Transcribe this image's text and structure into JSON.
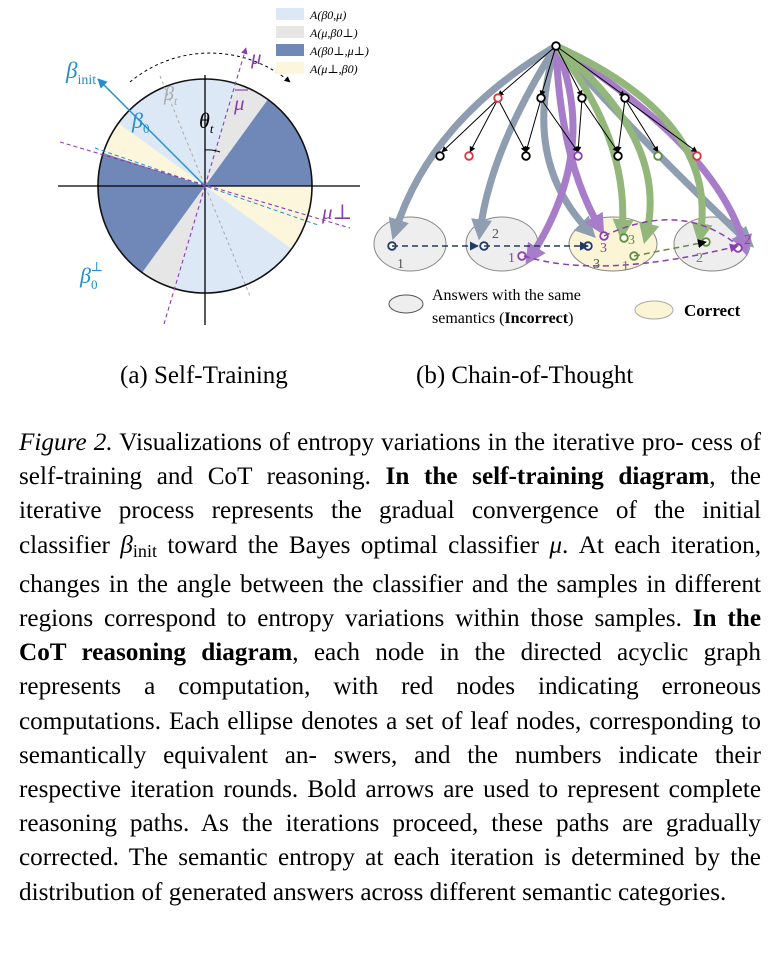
{
  "left_panel": {
    "legend": [
      "A(β0,μ)",
      "A(μ,β0⊥)",
      "A(β0⊥,μ⊥)",
      "A(μ⊥,β0)"
    ],
    "colors": {
      "light_blue": "#dde8f6",
      "gray": "#e6e6e6",
      "dark_blue": "#7088b8",
      "cream": "#fbf6dc",
      "axis_blue": "#1f8fd0",
      "purple": "#8a3fb0"
    },
    "labels": {
      "beta_init": "β",
      "beta_init_sub": "init",
      "beta0": "β",
      "beta0_sub": "0",
      "beta_t": "β",
      "beta_t_sub": "t",
      "theta": "θ",
      "theta_sub": "t",
      "mu": "μ",
      "mu_bar": "μ",
      "mu_perp": "μ⊥",
      "beta0_perp": "β",
      "beta0_perp_sub": "0",
      "beta0_perp_sup": "⊥"
    }
  },
  "right_panel": {
    "colors": {
      "gray_path": "#8f9db0",
      "purple_path": "#a77cc9",
      "green_path": "#93b77a",
      "red_node": "#d9363e",
      "ellipse_fill": "#eeeeee",
      "correct_fill": "#fbf5d6"
    },
    "iteration_labels": [
      "1",
      "2",
      "1",
      "3",
      "3",
      "3",
      "1",
      "2",
      "2"
    ],
    "legend_incorrect_line1": "Answers with the same",
    "legend_incorrect_line2_pre": "semantics (",
    "legend_incorrect_line2_bold": "Incorrect",
    "legend_incorrect_line2_post": ")",
    "legend_correct": "Correct"
  },
  "subcaptions": {
    "a": "(a) Self-Training",
    "b": "(b) Chain-of-Thought"
  },
  "caption": {
    "lead": "Figure 2.",
    "t1": " Visualizations of entropy variations in the iterative pro- cess of self-training and CoT reasoning. ",
    "b1": "In the self-training diagram",
    "t2": ", the iterative process represents the gradual convergence of the initial classifier ",
    "sym_beta": "β",
    "sym_beta_sub": "init",
    "t3": " toward the Bayes optimal classifier ",
    "sym_mu": "μ",
    "t4": ". At each iteration, changes in the angle between the classifier and the samples in different regions correspond to entropy variations within those samples. ",
    "b2": "In the CoT reasoning diagram",
    "t5": ", each node in the directed acyclic graph represents a computation, with red nodes indicating erroneous computations. Each ellipse denotes a set of leaf nodes, corresponding to semantically equivalent an- swers, and the numbers indicate their respective iteration rounds. Bold arrows are used to represent complete reasoning paths. As the iterations proceed, these paths are gradually corrected. The semantic entropy at each iteration is determined by the distribution of generated answers across different semantic categories."
  }
}
